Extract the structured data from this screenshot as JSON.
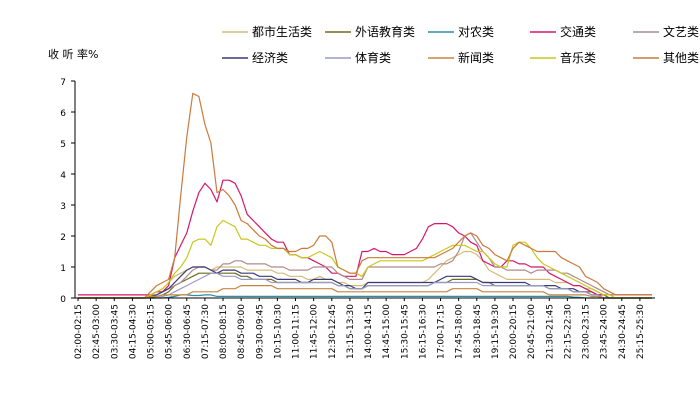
{
  "chart_data": {
    "type": "line",
    "ylabel": "收 听 率%",
    "ylim": [
      0,
      7
    ],
    "yticks": [
      0,
      1,
      2,
      3,
      4,
      5,
      6,
      7
    ],
    "grid": false,
    "legend_position": "top",
    "categories": [
      "02:00-02:15",
      "02:15-02:30",
      "02:30-02:45",
      "02:45-03:00",
      "03:00-03:15",
      "03:15-03:30",
      "03:30-03:45",
      "03:45-04:00",
      "04:00-04:15",
      "04:15-04:30",
      "04:30-04:45",
      "04:45-05:00",
      "05:00-05:15",
      "05:15-05:30",
      "05:30-05:45",
      "05:45-06:00",
      "06:00-06:15",
      "06:15-06:30",
      "06:30-06:45",
      "06:45-07:00",
      "07:00-07:15",
      "07:15-07:30",
      "07:30-07:45",
      "07:45-08:00",
      "08:00-08:15",
      "08:15-08:30",
      "08:30-08:45",
      "08:45-09:00",
      "09:00-09:15",
      "09:15-09:30",
      "09:30-09:45",
      "09:45-10:00",
      "10:00-10:15",
      "10:15-10:30",
      "10:30-10:45",
      "10:45-11:00",
      "11:00-11:15",
      "11:15-11:30",
      "11:30-11:45",
      "11:45-12:00",
      "12:00-12:15",
      "12:15-12:30",
      "12:30-12:45",
      "12:45-13:00",
      "13:00-13:15",
      "13:15-13:30",
      "13:30-13:45",
      "13:45-14:00",
      "14:00-14:15",
      "14:15-14:30",
      "14:30-14:45",
      "14:45-15:00",
      "15:00-15:15",
      "15:15-15:30",
      "15:30-15:45",
      "15:45-16:00",
      "16:00-16:15",
      "16:15-16:30",
      "16:30-16:45",
      "16:45-17:00",
      "17:00-17:15",
      "17:15-17:30",
      "17:30-17:45",
      "17:45-18:00",
      "18:00-18:15",
      "18:15-18:30",
      "18:30-18:45",
      "18:45-19:00",
      "19:00-19:15",
      "19:15-19:30",
      "19:30-19:45",
      "19:45-20:00",
      "20:00-20:15",
      "20:15-20:30",
      "20:30-20:45",
      "20:45-21:00",
      "21:00-21:15",
      "21:15-21:30",
      "21:30-21:45",
      "21:45-22:00",
      "22:00-22:15",
      "22:15-22:30",
      "22:30-22:45",
      "22:45-23:00",
      "23:00-23:15",
      "23:15-23:30",
      "23:30-23:45",
      "23:45-24:00",
      "24:00-24:15",
      "24:15-24:30",
      "24:30-24:45",
      "24:45-25:00",
      "25:00-25:15",
      "25:15-25:30",
      "25:30-25:45",
      "25:45-26:00"
    ],
    "tick_labels": [
      "02:00-02:15",
      "02:45-03:00",
      "03:30-03:45",
      "04:15-04:30",
      "05:00-05:15",
      "05:45-06:00",
      "06:30-06:45",
      "07:15-07:30",
      "08:00-08:15",
      "08:45-09:00",
      "09:30-09:45",
      "10:15-10:30",
      "11:00-11:15",
      "11:45-12:00",
      "12:30-12:45",
      "13:15-13:30",
      "14:00-14:15",
      "14:45-15:00",
      "15:30-15:45",
      "16:15-16:30",
      "17:00-17:15",
      "17:45-18:00",
      "18:30-18:45",
      "19:15-19:30",
      "20:00-20:15",
      "20:45-21:00",
      "21:30-21:45",
      "22:15-22:30",
      "23:00-23:15",
      "23:45-24:00",
      "24:30-24:45",
      "25:15-25:30"
    ],
    "series": [
      {
        "name": "都市生活类",
        "color": "#d4bc78",
        "values": [
          0,
          0,
          0,
          0,
          0,
          0,
          0,
          0,
          0,
          0,
          0,
          0,
          0.1,
          0.2,
          0.3,
          0.5,
          0.7,
          0.8,
          0.9,
          1.0,
          1.0,
          1.0,
          0.9,
          1.0,
          1.0,
          1.0,
          1.0,
          1.0,
          0.9,
          0.9,
          0.9,
          0.9,
          0.9,
          0.8,
          0.8,
          0.7,
          0.7,
          0.7,
          0.6,
          0.6,
          0.7,
          0.6,
          0.6,
          0.5,
          0.5,
          0.4,
          0.4,
          0.4,
          0.5,
          0.5,
          0.5,
          0.5,
          0.5,
          0.5,
          0.5,
          0.5,
          0.5,
          0.5,
          0.6,
          0.8,
          1.0,
          1.2,
          1.3,
          1.4,
          1.5,
          1.5,
          1.4,
          1.2,
          0.9,
          0.8,
          0.7,
          0.6,
          0.6,
          0.6,
          0.6,
          0.6,
          0.6,
          0.6,
          0.6,
          0.5,
          0.5,
          0.5,
          0.4,
          0.4,
          0.3,
          0.3,
          0.2,
          0.1,
          0,
          0,
          0,
          0,
          0,
          0,
          0,
          0
        ]
      },
      {
        "name": "外语教育类",
        "color": "#6b6b1e",
        "values": [
          0,
          0,
          0,
          0,
          0,
          0,
          0,
          0,
          0,
          0,
          0,
          0,
          0,
          0.05,
          0.1,
          0.2,
          0.4,
          0.5,
          0.6,
          0.7,
          0.8,
          0.8,
          0.8,
          0.8,
          0.8,
          0.8,
          0.8,
          0.7,
          0.7,
          0.6,
          0.6,
          0.6,
          0.6,
          0.5,
          0.5,
          0.5,
          0.5,
          0.5,
          0.5,
          0.5,
          0.5,
          0.5,
          0.5,
          0.4,
          0.4,
          0.3,
          0.3,
          0.3,
          0.4,
          0.4,
          0.4,
          0.4,
          0.4,
          0.4,
          0.4,
          0.4,
          0.4,
          0.4,
          0.4,
          0.5,
          0.5,
          0.5,
          0.6,
          0.6,
          0.6,
          0.6,
          0.6,
          0.5,
          0.5,
          0.4,
          0.4,
          0.4,
          0.4,
          0.4,
          0.4,
          0.4,
          0.4,
          0.4,
          0.3,
          0.3,
          0.3,
          0.3,
          0.2,
          0.2,
          0.2,
          0.2,
          0.1,
          0.1,
          0,
          0,
          0,
          0,
          0,
          0,
          0,
          0
        ]
      },
      {
        "name": "对农类",
        "color": "#2a8fa8",
        "values": [
          0,
          0,
          0,
          0,
          0,
          0,
          0,
          0,
          0,
          0,
          0,
          0,
          0,
          0,
          0,
          0.02,
          0.05,
          0.1,
          0.1,
          0.08,
          0.08,
          0.1,
          0.1,
          0.05,
          0.05,
          0.05,
          0.05,
          0.05,
          0.05,
          0.05,
          0.05,
          0.05,
          0.05,
          0.05,
          0.05,
          0.05,
          0.05,
          0.05,
          0.05,
          0.05,
          0.05,
          0.05,
          0.05,
          0.05,
          0.05,
          0.05,
          0.05,
          0.05,
          0.05,
          0.05,
          0.05,
          0.05,
          0.05,
          0.05,
          0.05,
          0.05,
          0.05,
          0.05,
          0.05,
          0.05,
          0.05,
          0.05,
          0.05,
          0.05,
          0.05,
          0.05,
          0.05,
          0.05,
          0.05,
          0.05,
          0.05,
          0.05,
          0.05,
          0.05,
          0.05,
          0.05,
          0.05,
          0.05,
          0.05,
          0.05,
          0.05,
          0.05,
          0.03,
          0.02,
          0,
          0,
          0,
          0,
          0,
          0,
          0,
          0,
          0,
          0,
          0,
          0
        ]
      },
      {
        "name": "交通类",
        "color": "#d6166e",
        "values": [
          0.1,
          0.1,
          0.1,
          0.1,
          0.1,
          0.1,
          0.1,
          0.1,
          0.1,
          0.1,
          0.1,
          0.1,
          0.1,
          0.2,
          0.2,
          0.4,
          1.3,
          1.7,
          2.1,
          2.8,
          3.4,
          3.7,
          3.5,
          3.1,
          3.8,
          3.8,
          3.7,
          3.3,
          2.7,
          2.5,
          2.3,
          2.1,
          1.9,
          1.8,
          1.8,
          1.4,
          1.4,
          1.3,
          1.3,
          1.2,
          1.1,
          1.0,
          0.8,
          0.8,
          0.7,
          0.7,
          0.7,
          1.5,
          1.5,
          1.6,
          1.5,
          1.5,
          1.4,
          1.4,
          1.4,
          1.5,
          1.6,
          1.9,
          2.3,
          2.4,
          2.4,
          2.4,
          2.3,
          2.1,
          2.0,
          1.8,
          1.7,
          1.2,
          1.1,
          1.0,
          1.0,
          1.2,
          1.2,
          1.1,
          1.1,
          1.0,
          1.0,
          1.0,
          0.8,
          0.7,
          0.6,
          0.5,
          0.4,
          0.4,
          0.3,
          0.2,
          0.1,
          0.1,
          0.1,
          0.1,
          0.1,
          0.1,
          0.1,
          0.1,
          0.1,
          0.1
        ]
      },
      {
        "name": "文艺类",
        "color": "#b08a8a",
        "values": [
          0,
          0,
          0,
          0,
          0,
          0,
          0,
          0,
          0,
          0,
          0,
          0,
          0.1,
          0.1,
          0.2,
          0.3,
          0.4,
          0.5,
          0.7,
          0.9,
          1.0,
          1.0,
          0.9,
          0.9,
          1.1,
          1.1,
          1.2,
          1.2,
          1.1,
          1.1,
          1.1,
          1.1,
          1.0,
          1.0,
          1.0,
          0.9,
          0.9,
          0.9,
          0.9,
          1.0,
          1.0,
          1.0,
          1.0,
          0.8,
          0.7,
          0.6,
          0.6,
          0.6,
          1.0,
          1.0,
          1.0,
          1.0,
          1.0,
          1.0,
          1.0,
          1.0,
          1.0,
          1.0,
          1.0,
          1.0,
          1.1,
          1.1,
          1.2,
          1.5,
          2.0,
          2.1,
          1.8,
          1.5,
          1.3,
          1.0,
          1.0,
          0.9,
          0.9,
          0.9,
          0.9,
          0.8,
          0.9,
          0.9,
          0.9,
          0.9,
          0.8,
          0.8,
          0.7,
          0.6,
          0.5,
          0.4,
          0.3,
          0.2,
          0.1,
          0.1,
          0.1,
          0.1,
          0.1,
          0.1,
          0.1,
          0.1
        ]
      },
      {
        "name": "经济类",
        "color": "#3a3a7a",
        "values": [
          0,
          0,
          0,
          0,
          0,
          0,
          0,
          0,
          0,
          0,
          0,
          0,
          0.05,
          0.1,
          0.2,
          0.3,
          0.5,
          0.7,
          0.9,
          1.0,
          1.0,
          1.0,
          0.9,
          0.8,
          0.9,
          0.9,
          0.9,
          0.8,
          0.8,
          0.8,
          0.7,
          0.7,
          0.7,
          0.6,
          0.6,
          0.6,
          0.6,
          0.5,
          0.5,
          0.6,
          0.6,
          0.6,
          0.6,
          0.5,
          0.4,
          0.4,
          0.3,
          0.3,
          0.5,
          0.5,
          0.5,
          0.5,
          0.5,
          0.5,
          0.5,
          0.5,
          0.5,
          0.5,
          0.5,
          0.5,
          0.6,
          0.7,
          0.7,
          0.7,
          0.7,
          0.7,
          0.6,
          0.5,
          0.5,
          0.5,
          0.5,
          0.5,
          0.5,
          0.5,
          0.5,
          0.4,
          0.4,
          0.4,
          0.4,
          0.4,
          0.3,
          0.3,
          0.3,
          0.2,
          0.2,
          0.1,
          0.1,
          0,
          0,
          0,
          0,
          0,
          0,
          0,
          0,
          0
        ]
      },
      {
        "name": "体育类",
        "color": "#9a9ac8",
        "values": [
          0,
          0,
          0,
          0,
          0,
          0,
          0,
          0,
          0,
          0,
          0,
          0,
          0,
          0,
          0.05,
          0.1,
          0.2,
          0.3,
          0.4,
          0.5,
          0.6,
          0.7,
          0.8,
          0.8,
          0.7,
          0.7,
          0.7,
          0.6,
          0.6,
          0.6,
          0.6,
          0.6,
          0.5,
          0.5,
          0.5,
          0.5,
          0.5,
          0.5,
          0.5,
          0.5,
          0.5,
          0.5,
          0.5,
          0.4,
          0.4,
          0.3,
          0.3,
          0.3,
          0.4,
          0.4,
          0.4,
          0.4,
          0.4,
          0.4,
          0.4,
          0.4,
          0.4,
          0.4,
          0.4,
          0.5,
          0.5,
          0.5,
          0.5,
          0.5,
          0.5,
          0.5,
          0.5,
          0.4,
          0.4,
          0.4,
          0.4,
          0.4,
          0.4,
          0.4,
          0.4,
          0.4,
          0.4,
          0.4,
          0.3,
          0.3,
          0.3,
          0.3,
          0.2,
          0.2,
          0.2,
          0.1,
          0.1,
          0,
          0,
          0,
          0,
          0,
          0,
          0,
          0,
          0
        ]
      },
      {
        "name": "新闻类",
        "color": "#c7863e",
        "values": [
          0,
          0,
          0,
          0,
          0,
          0,
          0,
          0,
          0,
          0,
          0,
          0,
          0.05,
          0.05,
          0.1,
          0.1,
          0.1,
          0.1,
          0.1,
          0.2,
          0.2,
          0.2,
          0.2,
          0.2,
          0.3,
          0.3,
          0.3,
          0.4,
          0.4,
          0.4,
          0.4,
          0.4,
          0.4,
          0.3,
          0.3,
          0.3,
          0.3,
          0.3,
          0.3,
          0.3,
          0.3,
          0.3,
          0.3,
          0.2,
          0.2,
          0.2,
          0.2,
          0.2,
          0.2,
          0.2,
          0.2,
          0.2,
          0.2,
          0.2,
          0.2,
          0.2,
          0.2,
          0.2,
          0.2,
          0.2,
          0.2,
          0.2,
          0.3,
          0.3,
          0.3,
          0.3,
          0.3,
          0.2,
          0.2,
          0.2,
          0.2,
          0.2,
          0.2,
          0.2,
          0.2,
          0.2,
          0.2,
          0.2,
          0.1,
          0.1,
          0.1,
          0.1,
          0.1,
          0.1,
          0.1,
          0.05,
          0.05,
          0,
          0,
          0,
          0,
          0,
          0,
          0,
          0,
          0
        ]
      },
      {
        "name": "音乐类",
        "color": "#c8c81e",
        "values": [
          0,
          0,
          0,
          0,
          0,
          0,
          0,
          0,
          0,
          0,
          0,
          0,
          0.1,
          0.2,
          0.3,
          0.5,
          0.8,
          1.0,
          1.3,
          1.8,
          1.9,
          1.9,
          1.7,
          2.3,
          2.5,
          2.4,
          2.3,
          1.9,
          1.9,
          1.8,
          1.7,
          1.7,
          1.6,
          1.6,
          1.6,
          1.4,
          1.4,
          1.3,
          1.3,
          1.4,
          1.5,
          1.4,
          1.3,
          1.0,
          0.9,
          0.8,
          0.8,
          0.7,
          1.0,
          1.1,
          1.2,
          1.2,
          1.2,
          1.2,
          1.2,
          1.2,
          1.2,
          1.2,
          1.3,
          1.4,
          1.5,
          1.6,
          1.7,
          1.7,
          1.7,
          1.6,
          1.5,
          1.5,
          1.3,
          1.1,
          1.0,
          1.0,
          1.7,
          1.8,
          1.8,
          1.6,
          1.3,
          1.1,
          1.0,
          0.9,
          0.8,
          0.7,
          0.6,
          0.5,
          0.4,
          0.3,
          0.2,
          0.1,
          0.1,
          0,
          0,
          0,
          0,
          0,
          0,
          0
        ]
      },
      {
        "name": "其他类",
        "color": "#cc7a3a",
        "values": [
          0,
          0,
          0,
          0,
          0,
          0,
          0,
          0,
          0,
          0,
          0,
          0,
          0.2,
          0.4,
          0.5,
          0.6,
          1.3,
          3.3,
          5.2,
          6.6,
          6.5,
          5.6,
          5.0,
          3.4,
          3.5,
          3.3,
          3.0,
          2.5,
          2.4,
          2.2,
          2.0,
          1.9,
          1.7,
          1.6,
          1.6,
          1.5,
          1.5,
          1.6,
          1.6,
          1.7,
          2.0,
          2.0,
          1.8,
          1.0,
          0.9,
          0.8,
          0.8,
          1.2,
          1.3,
          1.3,
          1.3,
          1.3,
          1.3,
          1.3,
          1.3,
          1.3,
          1.3,
          1.3,
          1.3,
          1.3,
          1.4,
          1.5,
          1.6,
          1.8,
          2.0,
          2.1,
          2.0,
          1.7,
          1.6,
          1.4,
          1.3,
          1.2,
          1.6,
          1.8,
          1.7,
          1.6,
          1.5,
          1.5,
          1.5,
          1.5,
          1.3,
          1.2,
          1.1,
          1.0,
          0.7,
          0.6,
          0.5,
          0.3,
          0.2,
          0.1,
          0.1,
          0.1,
          0.1,
          0.1,
          0.1,
          0.1
        ]
      }
    ]
  }
}
